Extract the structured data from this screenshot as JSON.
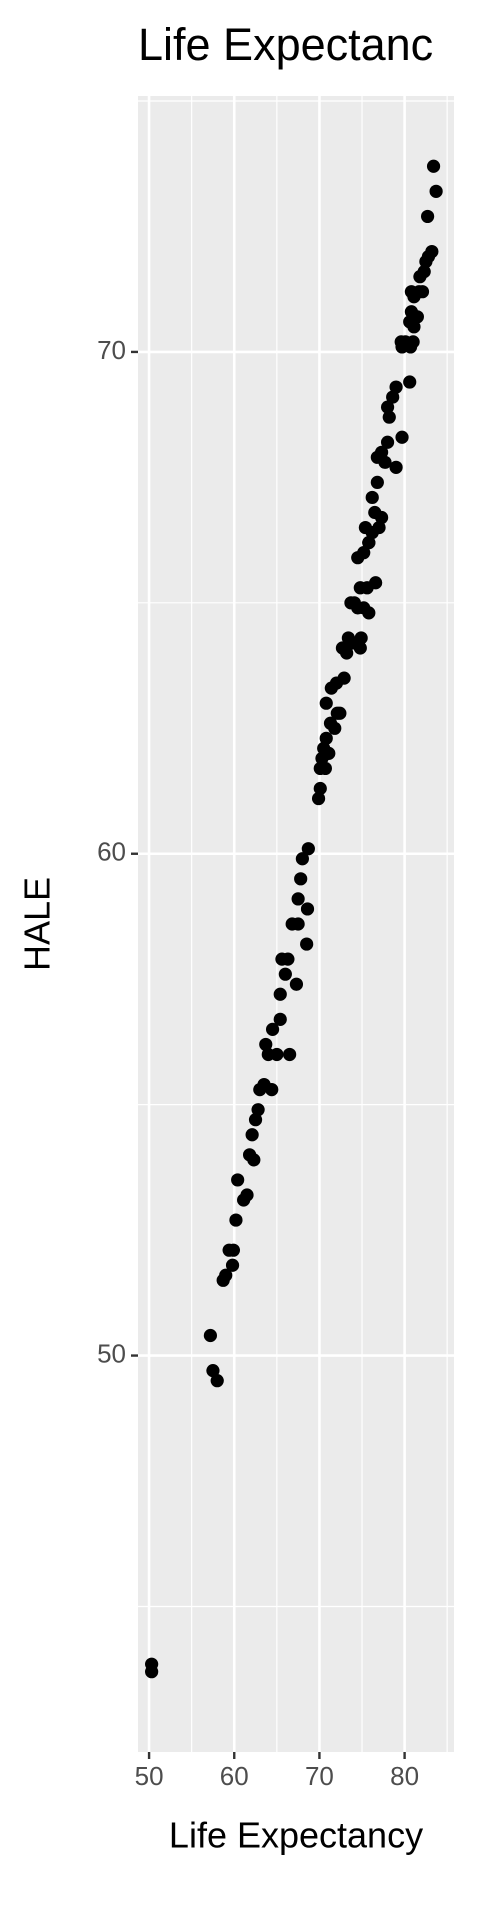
{
  "chart_data": {
    "type": "scatter",
    "title": "Life Expectanc",
    "x_label": "Life Expectancy",
    "y_label": "HALE",
    "xlim": [
      48.7,
      85.8
    ],
    "ylim": [
      42.1,
      75.1
    ],
    "xticks": [
      50,
      60,
      70,
      80
    ],
    "yticks": [
      50,
      60,
      70
    ],
    "xminor_ticks": [
      55,
      65,
      75,
      85
    ],
    "yminor_ticks": [
      45,
      55,
      65,
      75
    ],
    "grid": true,
    "color": "#000000",
    "x": [
      50.3,
      50.3,
      57.2,
      57.5,
      58.0,
      58.7,
      59.0,
      59.4,
      59.8,
      59.9,
      60.2,
      60.4,
      61.1,
      61.5,
      61.8,
      62.3,
      62.1,
      62.5,
      62.8,
      63.0,
      63.5,
      64.4,
      63.7,
      64.0,
      64.5,
      65.0,
      65.4,
      65.4,
      66.0,
      65.6,
      66.5,
      66.3,
      67.3,
      66.8,
      67.5,
      67.5,
      67.8,
      68.5,
      68.6,
      68.0,
      68.7,
      69.9,
      70.1,
      70.1,
      70.3,
      70.5,
      70.7,
      70.8,
      71.1,
      71.3,
      70.8,
      71.4,
      71.8,
      72.1,
      72.4,
      72.0,
      72.9,
      72.7,
      73.2,
      73.4,
      73.9,
      74.8,
      74.9,
      73.7,
      74.1,
      74.5,
      75.2,
      75.8,
      74.8,
      75.6,
      76.6,
      74.5,
      75.2,
      75.8,
      75.4,
      75.8,
      76.2,
      77.0,
      76.5,
      77.3,
      76.2,
      76.8,
      76.8,
      77.3,
      77.7,
      78.0,
      79.0,
      79.7,
      78.0,
      78.6,
      79.0,
      78.2,
      80.6,
      79.7,
      79.6,
      80.1,
      80.7,
      81.0,
      80.6,
      80.8,
      81.1,
      81.5,
      81.1,
      81.7,
      80.8,
      82.1,
      81.8,
      82.3,
      82.5,
      82.8,
      83.2,
      82.7,
      83.7,
      83.4
    ],
    "values": [
      43.85,
      43.7,
      50.4,
      49.7,
      49.5,
      51.5,
      51.6,
      52.1,
      51.8,
      52.1,
      52.7,
      53.5,
      53.1,
      53.2,
      54.0,
      53.9,
      54.4,
      54.7,
      54.9,
      55.3,
      55.4,
      55.3,
      56.2,
      56.0,
      56.5,
      56.0,
      56.7,
      57.2,
      57.6,
      57.9,
      56.0,
      57.9,
      57.4,
      58.6,
      58.6,
      59.1,
      59.5,
      58.2,
      58.9,
      59.9,
      60.1,
      61.1,
      61.3,
      61.7,
      61.9,
      62.1,
      61.7,
      62.3,
      62.0,
      62.6,
      63.0,
      63.3,
      62.5,
      62.8,
      62.8,
      63.4,
      63.5,
      64.1,
      64.0,
      64.3,
      64.2,
      64.1,
      64.3,
      65.0,
      65.0,
      64.9,
      64.9,
      64.8,
      65.3,
      65.3,
      65.4,
      65.9,
      66.0,
      66.2,
      66.5,
      66.2,
      66.4,
      66.5,
      66.8,
      66.7,
      67.1,
      67.4,
      67.9,
      68.0,
      67.8,
      68.2,
      67.7,
      68.3,
      68.9,
      69.1,
      69.3,
      68.7,
      69.4,
      70.1,
      70.2,
      70.2,
      70.1,
      70.2,
      70.6,
      70.8,
      70.5,
      70.7,
      71.1,
      71.2,
      71.2,
      71.2,
      71.5,
      71.6,
      71.8,
      71.9,
      72.0,
      72.7,
      73.2,
      73.7
    ]
  }
}
